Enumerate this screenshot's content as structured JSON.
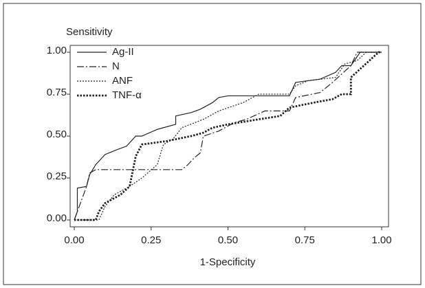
{
  "chart_data": {
    "type": "line",
    "y_label": "Sensitivity",
    "x_label": "1-Specificity",
    "xlim": [
      0,
      1
    ],
    "ylim": [
      0,
      1
    ],
    "xticks": [
      {
        "value": 0,
        "label": "0.00"
      },
      {
        "value": 0.25,
        "label": "0.25"
      },
      {
        "value": 0.5,
        "label": "0.50"
      },
      {
        "value": 0.75,
        "label": "0.75"
      },
      {
        "value": 1,
        "label": "1.00"
      }
    ],
    "yticks": [
      {
        "value": 0,
        "label": "0.00"
      },
      {
        "value": 0.25,
        "label": "0.25"
      },
      {
        "value": 0.5,
        "label": "0.50"
      },
      {
        "value": 0.75,
        "label": "0.75"
      },
      {
        "value": 1,
        "label": "1.00"
      }
    ],
    "legend": "top-left",
    "series": [
      {
        "name": "Ag-II",
        "color": "#222222",
        "x": [
          0,
          0.01,
          0.01,
          0.04,
          0.05,
          0.07,
          0.09,
          0.1,
          0.14,
          0.17,
          0.2,
          0.22,
          0.27,
          0.33,
          0.33,
          0.38,
          0.41,
          0.45,
          0.47,
          0.5,
          0.7,
          0.72,
          0.8,
          0.85,
          0.87,
          0.9,
          0.93,
          1
        ],
        "values": [
          0,
          0.05,
          0.19,
          0.2,
          0.27,
          0.33,
          0.37,
          0.39,
          0.42,
          0.44,
          0.5,
          0.5,
          0.54,
          0.57,
          0.62,
          0.64,
          0.66,
          0.7,
          0.73,
          0.74,
          0.74,
          0.82,
          0.84,
          0.88,
          0.92,
          0.92,
          1,
          1
        ]
      },
      {
        "name": "N",
        "color": "#222222",
        "x": [
          0,
          0.02,
          0.04,
          0.05,
          0.07,
          0.35,
          0.37,
          0.39,
          0.41,
          0.42,
          0.47,
          0.52,
          0.56,
          0.62,
          0.7,
          0.72,
          0.8,
          0.84,
          0.9,
          0.92,
          1
        ],
        "values": [
          0,
          0.1,
          0.2,
          0.28,
          0.3,
          0.3,
          0.33,
          0.37,
          0.4,
          0.5,
          0.53,
          0.58,
          0.6,
          0.65,
          0.65,
          0.73,
          0.76,
          0.82,
          0.92,
          1,
          1
        ]
      },
      {
        "name": "ANF",
        "color": "#222222",
        "x": [
          0,
          0.08,
          0.1,
          0.13,
          0.18,
          0.22,
          0.27,
          0.29,
          0.32,
          0.35,
          0.42,
          0.47,
          0.55,
          0.6,
          0.7,
          0.72,
          0.76,
          0.85,
          0.88,
          0.92,
          0.95,
          1
        ],
        "values": [
          0,
          0,
          0.08,
          0.15,
          0.2,
          0.25,
          0.33,
          0.45,
          0.48,
          0.55,
          0.6,
          0.65,
          0.7,
          0.75,
          0.75,
          0.8,
          0.83,
          0.85,
          0.93,
          0.95,
          1,
          1
        ]
      },
      {
        "name": "TNF-α",
        "color": "#222222",
        "x": [
          0,
          0.07,
          0.08,
          0.1,
          0.15,
          0.18,
          0.2,
          0.22,
          0.3,
          0.38,
          0.42,
          0.45,
          0.5,
          0.6,
          0.67,
          0.7,
          0.78,
          0.84,
          0.87,
          0.9,
          0.9,
          0.96,
          0.99,
          1
        ],
        "values": [
          0,
          0,
          0.05,
          0.1,
          0.15,
          0.2,
          0.38,
          0.45,
          0.47,
          0.5,
          0.52,
          0.55,
          0.57,
          0.6,
          0.62,
          0.67,
          0.7,
          0.72,
          0.75,
          0.75,
          0.85,
          0.95,
          1,
          1
        ]
      }
    ]
  }
}
